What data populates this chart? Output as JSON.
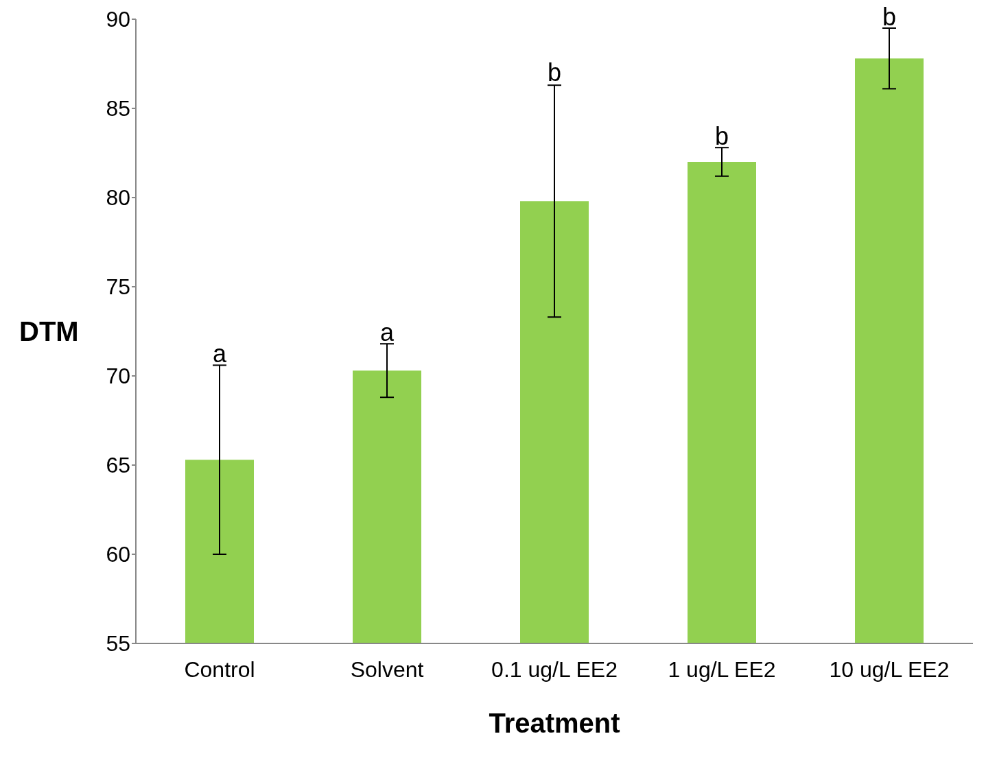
{
  "chart_data": {
    "type": "bar",
    "xlabel": "Treatment",
    "ylabel": "DTM",
    "categories": [
      "Control",
      "Solvent",
      "0.1 ug/L EE2",
      "1 ug/L EE2",
      "10 ug/L EE2"
    ],
    "values": [
      65.3,
      70.3,
      79.8,
      82.0,
      87.8
    ],
    "errors": [
      5.3,
      1.5,
      6.5,
      0.8,
      1.7
    ],
    "color": "#92d050",
    "ylim": [
      55,
      90
    ],
    "yticks": [
      55,
      60,
      65,
      70,
      75,
      80,
      85,
      90
    ],
    "grid": false,
    "legend": false,
    "annotations": [
      {
        "text": "a",
        "x": "Control",
        "y": 70.6
      },
      {
        "text": "a",
        "x": "Solvent",
        "y": 71.8
      },
      {
        "text": "b",
        "x": "0.1 ug/L EE2",
        "y": 86.4
      },
      {
        "text": "b",
        "x": "1 ug/L EE2",
        "y": 82.8
      },
      {
        "text": "b",
        "x": "10 ug/L EE2",
        "y": 89.5
      }
    ]
  }
}
